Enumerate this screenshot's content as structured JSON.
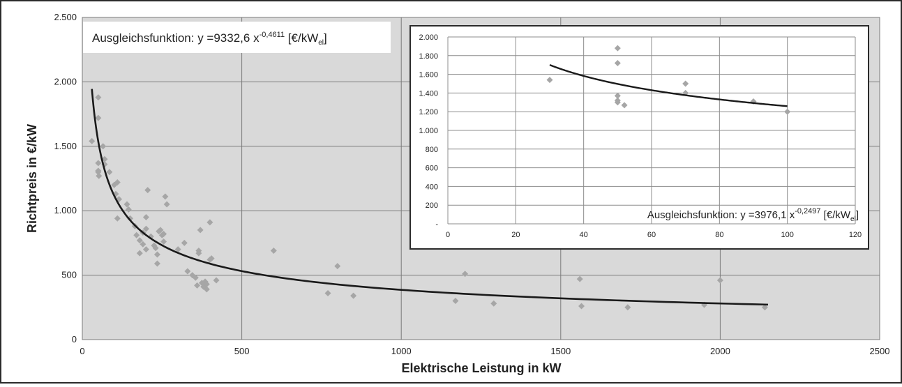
{
  "colors": {
    "plot_background": "#d9d9d9",
    "frame": "#2b2b2b",
    "grid": "#7a7a7a",
    "inset_grid": "#8c8c8c",
    "marker": "#a6a6a6",
    "curve": "#1a1a1a",
    "equation_box": "#ffffff"
  },
  "chart_data": [
    {
      "type": "scatter",
      "xlabel": "Elektrische Leistung in kW",
      "ylabel": "Richtpreis in €/kW",
      "xlim": [
        0,
        2500
      ],
      "ylim": [
        0,
        2500
      ],
      "x_ticks": [
        0,
        500,
        1000,
        1500,
        2000,
        2500
      ],
      "x_tick_labels": [
        "0",
        "500",
        "1000",
        "1500",
        "2000",
        "2500"
      ],
      "y_ticks": [
        0,
        500,
        1000,
        1500,
        2000,
        2500
      ],
      "y_tick_labels": [
        "0",
        "500",
        "1.000",
        "1.500",
        "2.000",
        "2.500"
      ],
      "grid": true,
      "equation": {
        "prefix": "Ausgleichsfunktion: y =9332,6 x",
        "exponent": "-0,4611",
        "unit_open": " [€/kW",
        "unit_sub": "el",
        "unit_close": "]"
      },
      "fit": {
        "a": 9332.6,
        "b": -0.4611,
        "x_range": [
          30,
          2150
        ]
      },
      "points": [
        [
          30,
          1540
        ],
        [
          50,
          1880
        ],
        [
          50,
          1720
        ],
        [
          50,
          1370
        ],
        [
          50,
          1310
        ],
        [
          50,
          1300
        ],
        [
          52,
          1270
        ],
        [
          65,
          1500
        ],
        [
          70,
          1400
        ],
        [
          70,
          1360
        ],
        [
          85,
          1300
        ],
        [
          100,
          1200
        ],
        [
          110,
          1220
        ],
        [
          105,
          1130
        ],
        [
          115,
          1090
        ],
        [
          110,
          940
        ],
        [
          140,
          1050
        ],
        [
          145,
          1010
        ],
        [
          150,
          940
        ],
        [
          165,
          880
        ],
        [
          170,
          810
        ],
        [
          180,
          770
        ],
        [
          180,
          670
        ],
        [
          190,
          740
        ],
        [
          190,
          830
        ],
        [
          200,
          700
        ],
        [
          200,
          860
        ],
        [
          200,
          950
        ],
        [
          205,
          1160
        ],
        [
          215,
          800
        ],
        [
          225,
          730
        ],
        [
          230,
          710
        ],
        [
          235,
          660
        ],
        [
          235,
          590
        ],
        [
          240,
          840
        ],
        [
          245,
          850
        ],
        [
          250,
          810
        ],
        [
          255,
          820
        ],
        [
          255,
          760
        ],
        [
          260,
          1110
        ],
        [
          265,
          1050
        ],
        [
          300,
          700
        ],
        [
          320,
          750
        ],
        [
          330,
          530
        ],
        [
          345,
          500
        ],
        [
          355,
          480
        ],
        [
          360,
          420
        ],
        [
          365,
          690
        ],
        [
          365,
          670
        ],
        [
          370,
          850
        ],
        [
          375,
          440
        ],
        [
          380,
          410
        ],
        [
          385,
          450
        ],
        [
          390,
          390
        ],
        [
          390,
          430
        ],
        [
          400,
          620
        ],
        [
          400,
          910
        ],
        [
          405,
          630
        ],
        [
          420,
          460
        ],
        [
          600,
          690
        ],
        [
          770,
          360
        ],
        [
          800,
          570
        ],
        [
          850,
          340
        ],
        [
          1170,
          300
        ],
        [
          1200,
          510
        ],
        [
          1290,
          280
        ],
        [
          1560,
          470
        ],
        [
          1565,
          260
        ],
        [
          1710,
          250
        ],
        [
          1950,
          270
        ],
        [
          2000,
          460
        ],
        [
          2140,
          250
        ]
      ]
    },
    {
      "type": "scatter",
      "xlim": [
        0,
        120
      ],
      "ylim": [
        0,
        2000
      ],
      "x_ticks": [
        0,
        20,
        40,
        60,
        80,
        100,
        120
      ],
      "x_tick_labels": [
        "0",
        "20",
        "40",
        "60",
        "80",
        "100",
        "120"
      ],
      "y_ticks": [
        0,
        200,
        400,
        600,
        800,
        1000,
        1200,
        1400,
        1600,
        1800,
        2000
      ],
      "y_tick_labels": [
        "-",
        "200",
        "400",
        "600",
        "800",
        "1.000",
        "1.200",
        "1.400",
        "1.600",
        "1.800",
        "2.000"
      ],
      "grid": true,
      "equation": {
        "prefix": "Ausgleichsfunktion: y =3976,1 x",
        "exponent": "-0,2497",
        "unit_open": " [€/kW",
        "unit_sub": "el",
        "unit_close": "]"
      },
      "fit": {
        "a": 3976.1,
        "b": -0.2497,
        "x_range": [
          30,
          100
        ]
      },
      "points": [
        [
          30,
          1540
        ],
        [
          50,
          1880
        ],
        [
          50,
          1720
        ],
        [
          50,
          1370
        ],
        [
          50,
          1320
        ],
        [
          50,
          1300
        ],
        [
          52,
          1270
        ],
        [
          70,
          1500
        ],
        [
          70,
          1400
        ],
        [
          90,
          1310
        ],
        [
          100,
          1200
        ]
      ]
    }
  ]
}
